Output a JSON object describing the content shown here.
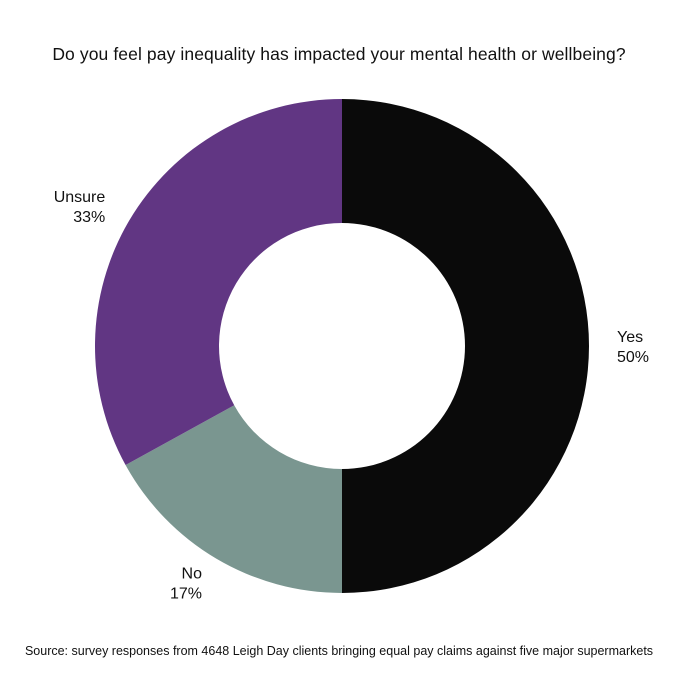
{
  "chart_data": {
    "type": "pie",
    "title": "Do you feel pay inequality has impacted your mental health or wellbeing?",
    "source": "Source: survey responses from 4648 Leigh Day clients bringing equal pay claims against five major supermarkets",
    "donut": true,
    "slices": [
      {
        "label": "Yes",
        "value": 50,
        "value_label": "50%",
        "color": "#0a0a0a"
      },
      {
        "label": "No",
        "value": 17,
        "value_label": "17%",
        "color": "#7a9690"
      },
      {
        "label": "Unsure",
        "value": 33,
        "value_label": "33%",
        "color": "#613683"
      }
    ]
  }
}
